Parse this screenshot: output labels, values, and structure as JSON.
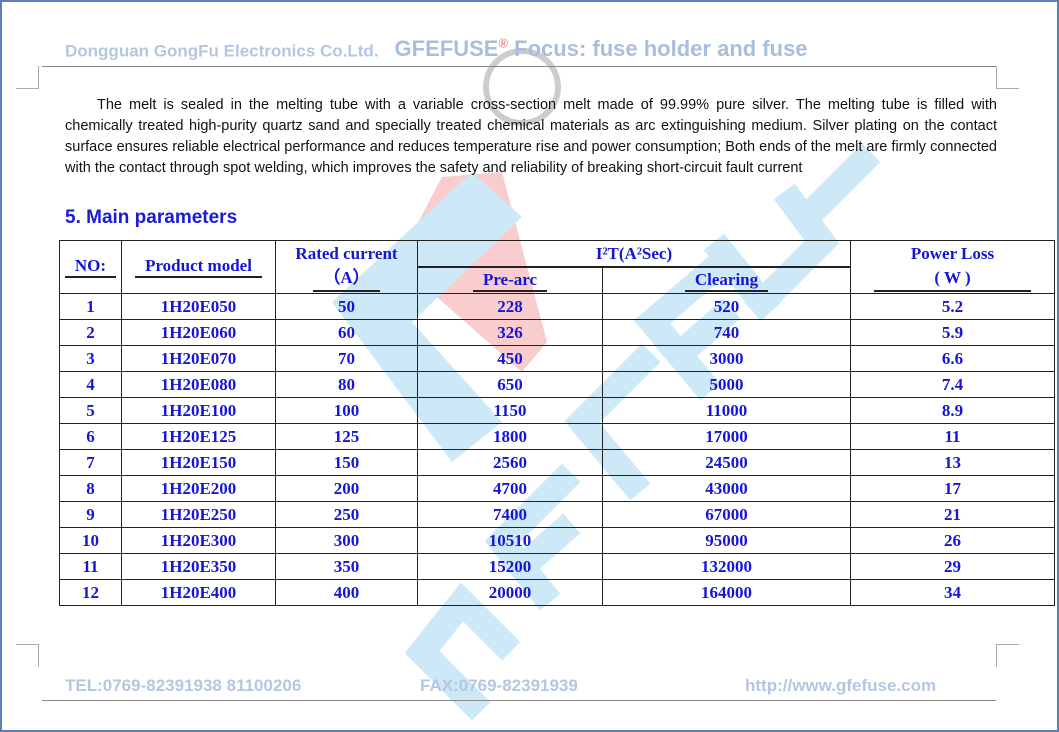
{
  "header": {
    "company": "Dongguan GongFu Electronics Co.Ltd.",
    "brand": "GFEFUSE",
    "registered": "®",
    "focus": "Focus: fuse holder and fuse"
  },
  "paragraph": "The melt is sealed in the melting tube with a variable cross-section melt made of 99.99% pure silver. The melting tube is filled with chemically treated high-purity quartz sand and specially treated chemical materials as arc extinguishing medium. Silver plating on the contact surface ensures reliable electrical performance and reduces temperature rise and power consumption; Both ends of the melt are firmly connected with the contact through spot welding, which improves the safety and reliability of breaking short-circuit fault current",
  "section_title": "5. Main parameters",
  "table": {
    "headers": {
      "no": "NO:",
      "model": "Product model",
      "rated": "Rated current",
      "rated_unit": "（A）",
      "i2t": "I²T(A²Sec)",
      "prearc": "Pre-arc",
      "clearing": "Clearing",
      "power": "Power Loss",
      "power_unit": "( W )"
    },
    "rows": [
      [
        "1",
        "1H20E050",
        "50",
        "228",
        "520",
        "5.2"
      ],
      [
        "2",
        "1H20E060",
        "60",
        "326",
        "740",
        "5.9"
      ],
      [
        "3",
        "1H20E070",
        "70",
        "450",
        "3000",
        "6.6"
      ],
      [
        "4",
        "1H20E080",
        "80",
        "650",
        "5000",
        "7.4"
      ],
      [
        "5",
        "1H20E100",
        "100",
        "1150",
        "11000",
        "8.9"
      ],
      [
        "6",
        "1H20E125",
        "125",
        "1800",
        "17000",
        "11"
      ],
      [
        "7",
        "1H20E150",
        "150",
        "2560",
        "24500",
        "13"
      ],
      [
        "8",
        "1H20E200",
        "200",
        "4700",
        "43000",
        "17"
      ],
      [
        "9",
        "1H20E250",
        "250",
        "7400",
        "67000",
        "21"
      ],
      [
        "10",
        "1H20E300",
        "300",
        "10510",
        "95000",
        "26"
      ],
      [
        "11",
        "1H20E350",
        "350",
        "15200",
        "132000",
        "29"
      ],
      [
        "12",
        "1H20E400",
        "400",
        "20000",
        "164000",
        "34"
      ]
    ]
  },
  "footer": {
    "tel": "TEL:0769-82391938 81100206",
    "fax": "FAX:0769-82391939",
    "url": "http://www.gfefuse.com"
  },
  "watermark": {
    "text": "GFEFUSE",
    "colors": {
      "blue": "#cde8f7",
      "red": "#f9cdcd"
    }
  }
}
